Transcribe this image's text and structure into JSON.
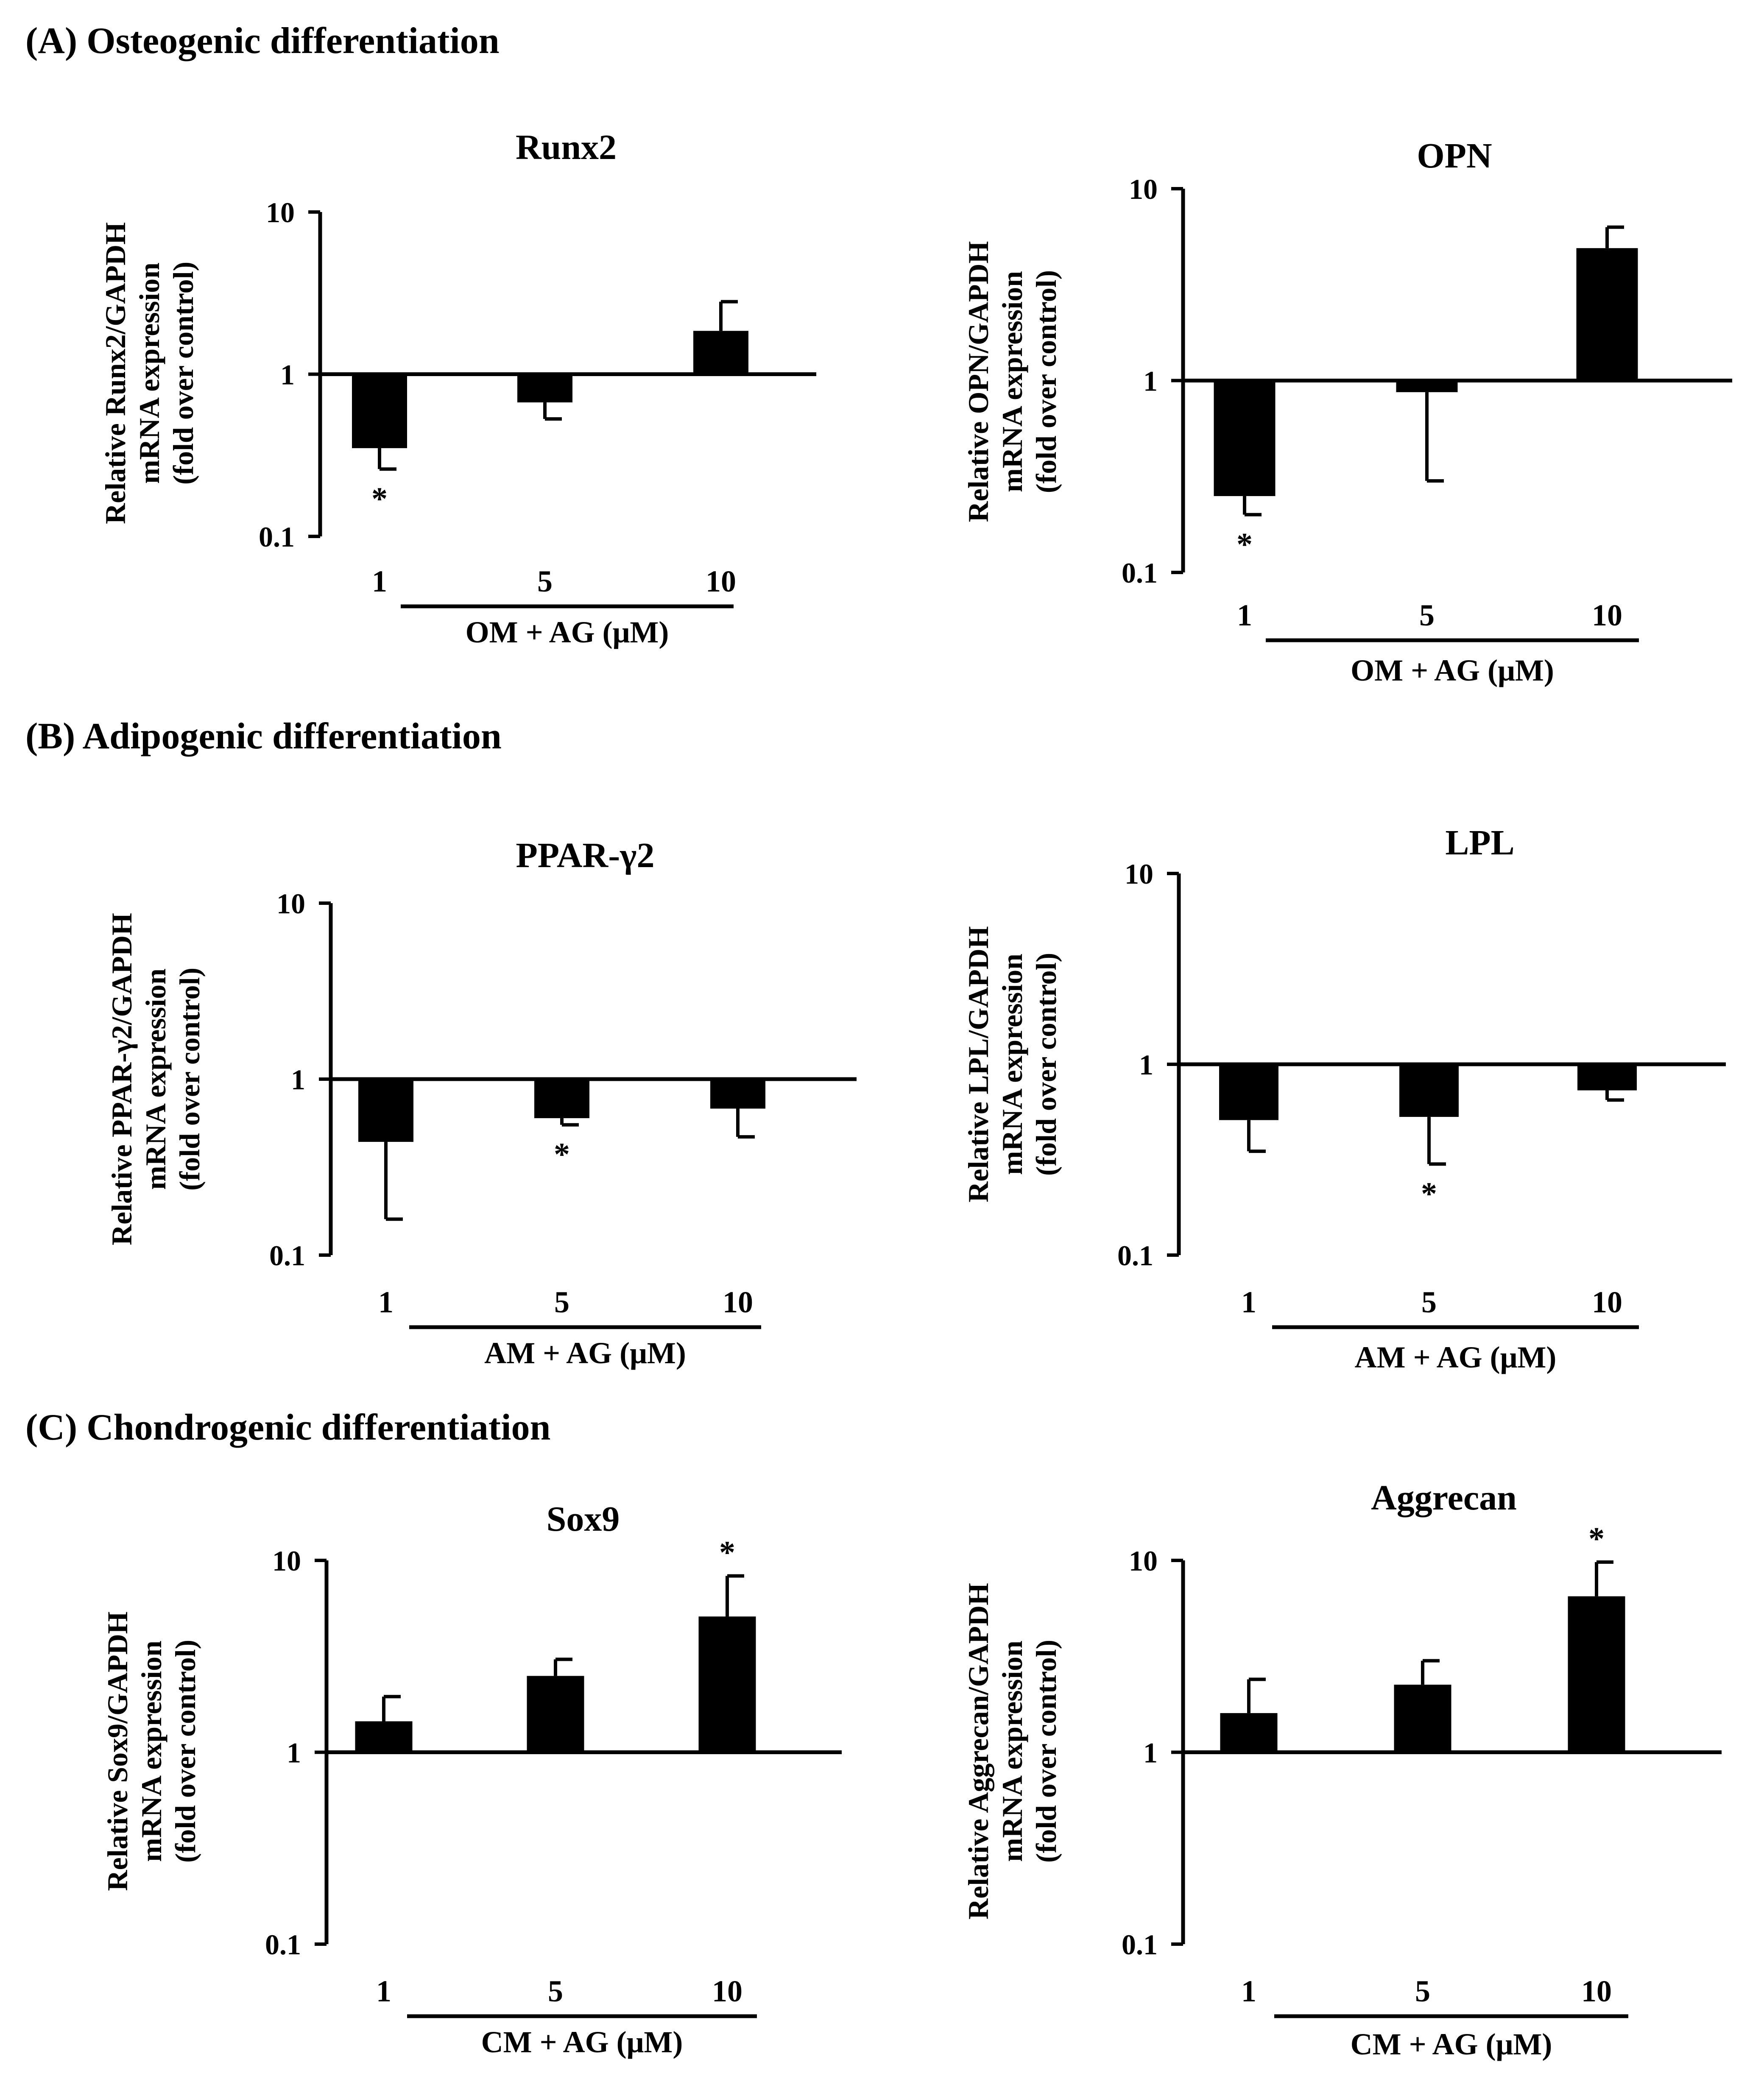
{
  "figure": {
    "sections": [
      {
        "label": "(A) Osteogenic differentiation"
      },
      {
        "label": "(B) Adipogenic differentiation"
      },
      {
        "label": "(C) Chondrogenic differentiation"
      }
    ]
  },
  "chart_data": [
    {
      "type": "bar",
      "section": "(A) Osteogenic differentiation",
      "title": "Runx2",
      "ylabel": [
        "Relative Runx2/GAPDH",
        "mRNA expression",
        "(fold over control)"
      ],
      "xlabel": "OM + AG (μM)",
      "categories": [
        "1",
        "5",
        "10"
      ],
      "values": [
        0.35,
        0.67,
        1.85
      ],
      "errors": [
        0.26,
        0.53,
        2.8
      ],
      "significance": [
        "*",
        "",
        ""
      ],
      "yscale": "log",
      "ylim": [
        0.1,
        10
      ],
      "yticks": [
        "10",
        "1",
        "0.1"
      ]
    },
    {
      "type": "bar",
      "section": "(A) Osteogenic differentiation",
      "title": "OPN",
      "ylabel": [
        "Relative OPN/GAPDH",
        "mRNA expression",
        "(fold over control)"
      ],
      "xlabel": "OM + AG (μM)",
      "categories": [
        "1",
        "5",
        "10"
      ],
      "values": [
        0.25,
        0.87,
        4.9
      ],
      "errors": [
        0.2,
        0.3,
        6.3
      ],
      "significance": [
        "*",
        "",
        ""
      ],
      "yscale": "log",
      "ylim": [
        0.1,
        10
      ],
      "yticks": [
        "10",
        "1",
        "0.1"
      ]
    },
    {
      "type": "bar",
      "section": "(B) Adipogenic differentiation",
      "title": "PPAR-γ2",
      "ylabel": [
        "Relative PPAR-γ2/GAPDH",
        "mRNA expression",
        "(fold over control)"
      ],
      "xlabel": "AM + AG (μM)",
      "categories": [
        "1",
        "5",
        "10"
      ],
      "values": [
        0.44,
        0.6,
        0.68
      ],
      "errors": [
        0.16,
        0.55,
        0.47
      ],
      "significance": [
        "",
        "*",
        ""
      ],
      "yscale": "log",
      "ylim": [
        0.1,
        10
      ],
      "yticks": [
        "10",
        "1",
        "0.1"
      ]
    },
    {
      "type": "bar",
      "section": "(B) Adipogenic differentiation",
      "title": "LPL",
      "ylabel": [
        "Relative LPL/GAPDH",
        "mRNA expression",
        "(fold over control)"
      ],
      "xlabel": "AM + AG (μM)",
      "categories": [
        "1",
        "5",
        "10"
      ],
      "values": [
        0.51,
        0.53,
        0.73
      ],
      "errors": [
        0.35,
        0.3,
        0.65
      ],
      "significance": [
        "",
        "*",
        ""
      ],
      "yscale": "log",
      "ylim": [
        0.1,
        10
      ],
      "yticks": [
        "10",
        "1",
        "0.1"
      ]
    },
    {
      "type": "bar",
      "section": "(C) Chondrogenic differentiation",
      "title": "Sox9",
      "ylabel": [
        "Relative Sox9/GAPDH",
        "mRNA expression",
        "(fold over control)"
      ],
      "xlabel": "CM + AG (μM)",
      "categories": [
        "1",
        "5",
        "10"
      ],
      "values": [
        1.45,
        2.5,
        5.1
      ],
      "errors": [
        1.95,
        3.05,
        8.3
      ],
      "significance": [
        "",
        "",
        "*"
      ],
      "yscale": "log",
      "ylim": [
        0.1,
        10
      ],
      "yticks": [
        "10",
        "1",
        "0.1"
      ]
    },
    {
      "type": "bar",
      "section": "(C) Chondrogenic differentiation",
      "title": "Aggrecan",
      "ylabel": [
        "Relative Aggrecan/GAPDH",
        "mRNA expression",
        "(fold over control)"
      ],
      "xlabel": "CM + AG (μM)",
      "categories": [
        "1",
        "5",
        "10"
      ],
      "values": [
        1.6,
        2.25,
        6.5
      ],
      "errors": [
        2.4,
        3.0,
        9.8
      ],
      "significance": [
        "",
        "",
        "*"
      ],
      "yscale": "log",
      "ylim": [
        0.1,
        10
      ],
      "yticks": [
        "10",
        "1",
        "0.1"
      ]
    }
  ]
}
